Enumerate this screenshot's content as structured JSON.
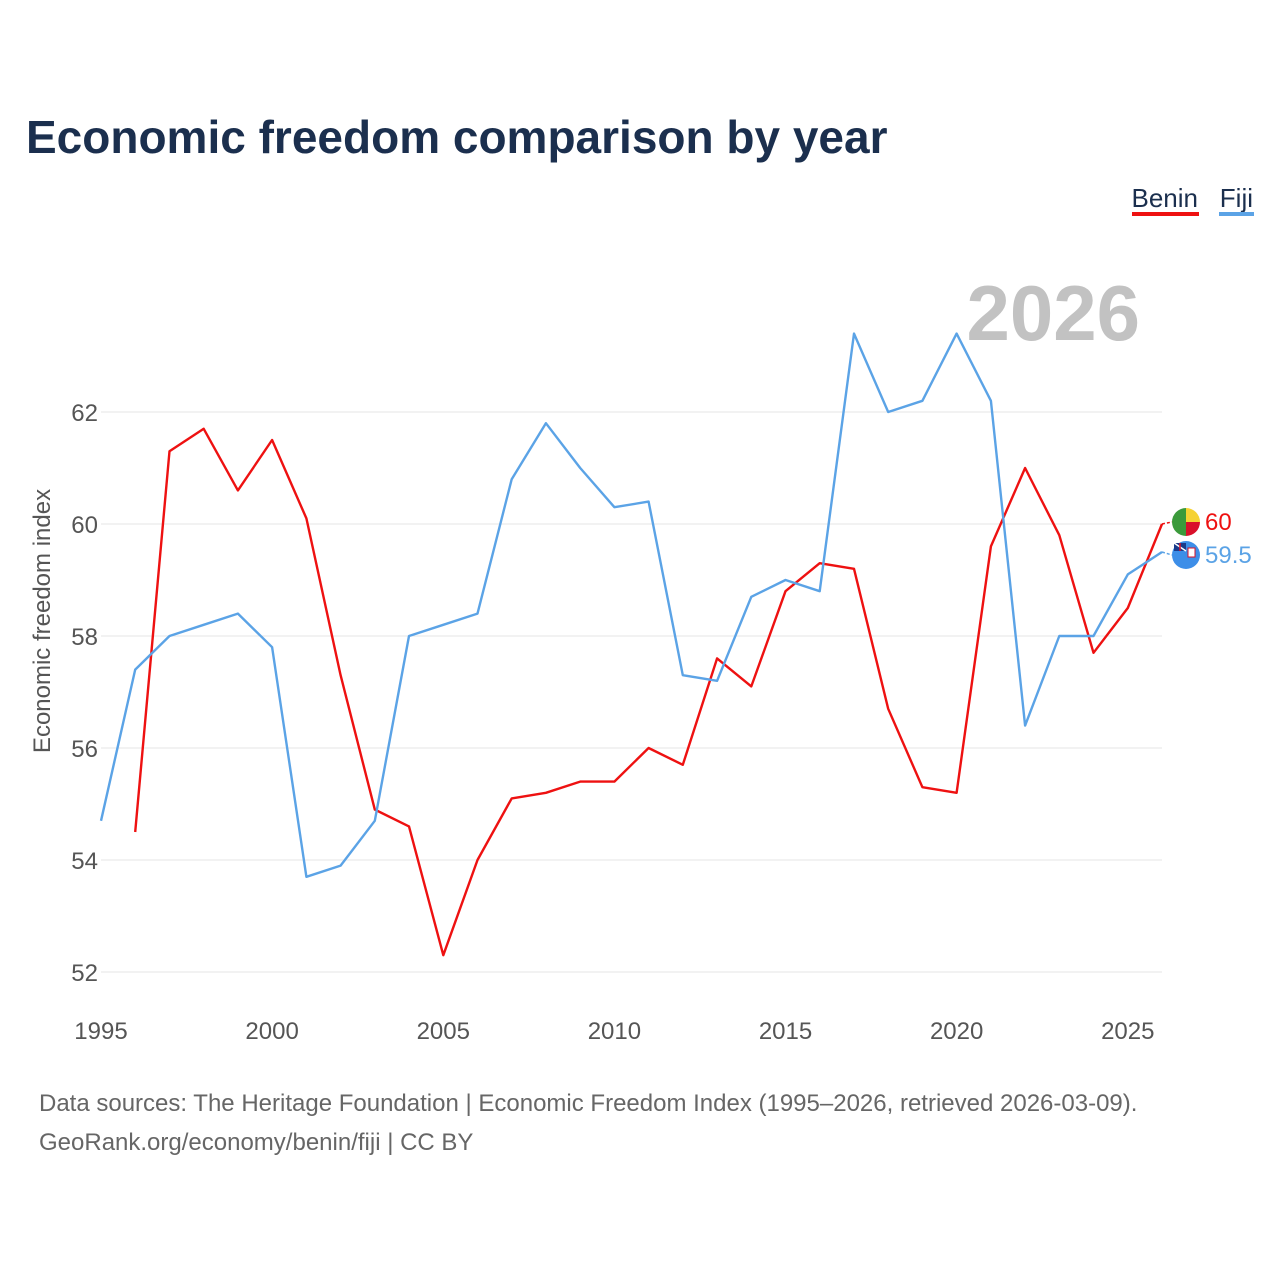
{
  "chart_data": {
    "type": "line",
    "title": "Economic freedom comparison by year",
    "ylabel": "Economic freedom index",
    "xlabel": "",
    "xlim": [
      1995,
      2026
    ],
    "ylim": [
      51.5,
      64
    ],
    "x_ticks": [
      1995,
      2000,
      2005,
      2010,
      2015,
      2020,
      2025
    ],
    "y_ticks": [
      52,
      54,
      56,
      58,
      60,
      62
    ],
    "current_year": "2026",
    "legend_position": "top-right",
    "series": [
      {
        "name": "Benin",
        "color": "#ee1111",
        "flag_icon": "benin-flag-icon",
        "end_label": "60",
        "x": [
          1996,
          1997,
          1998,
          1999,
          2000,
          2001,
          2002,
          2003,
          2004,
          2005,
          2006,
          2007,
          2008,
          2009,
          2010,
          2011,
          2012,
          2013,
          2014,
          2015,
          2016,
          2017,
          2018,
          2019,
          2020,
          2021,
          2022,
          2023,
          2024,
          2025,
          2026
        ],
        "values": [
          54.5,
          61.3,
          61.7,
          60.6,
          61.5,
          60.1,
          57.3,
          54.9,
          54.6,
          52.3,
          54.0,
          55.1,
          55.2,
          55.4,
          55.4,
          56.0,
          55.7,
          57.6,
          57.1,
          58.8,
          59.3,
          59.2,
          56.7,
          55.3,
          55.2,
          59.6,
          61.0,
          59.8,
          57.7,
          58.5,
          60.0
        ]
      },
      {
        "name": "Fiji",
        "color": "#5ba3e6",
        "flag_icon": "fiji-flag-icon",
        "end_label": "59.5",
        "x": [
          1995,
          1996,
          1997,
          1998,
          1999,
          2000,
          2001,
          2002,
          2003,
          2004,
          2005,
          2006,
          2007,
          2008,
          2009,
          2010,
          2011,
          2012,
          2013,
          2014,
          2015,
          2016,
          2017,
          2018,
          2019,
          2020,
          2021,
          2022,
          2023,
          2024,
          2025,
          2026
        ],
        "values": [
          54.7,
          57.4,
          58.0,
          58.2,
          58.4,
          57.8,
          53.7,
          53.9,
          54.7,
          58.0,
          58.2,
          58.4,
          60.8,
          61.8,
          61.0,
          60.3,
          60.4,
          57.3,
          57.2,
          58.7,
          59.0,
          58.8,
          63.4,
          62.0,
          62.2,
          63.4,
          62.2,
          56.4,
          58.0,
          58.0,
          59.1,
          59.5
        ]
      }
    ]
  },
  "footer": {
    "sources": "Data sources: The Heritage Foundation | Economic Freedom Index (1995–2026, retrieved 2026-03-09).",
    "attribution": "GeoRank.org/economy/benin/fiji | CC BY"
  }
}
